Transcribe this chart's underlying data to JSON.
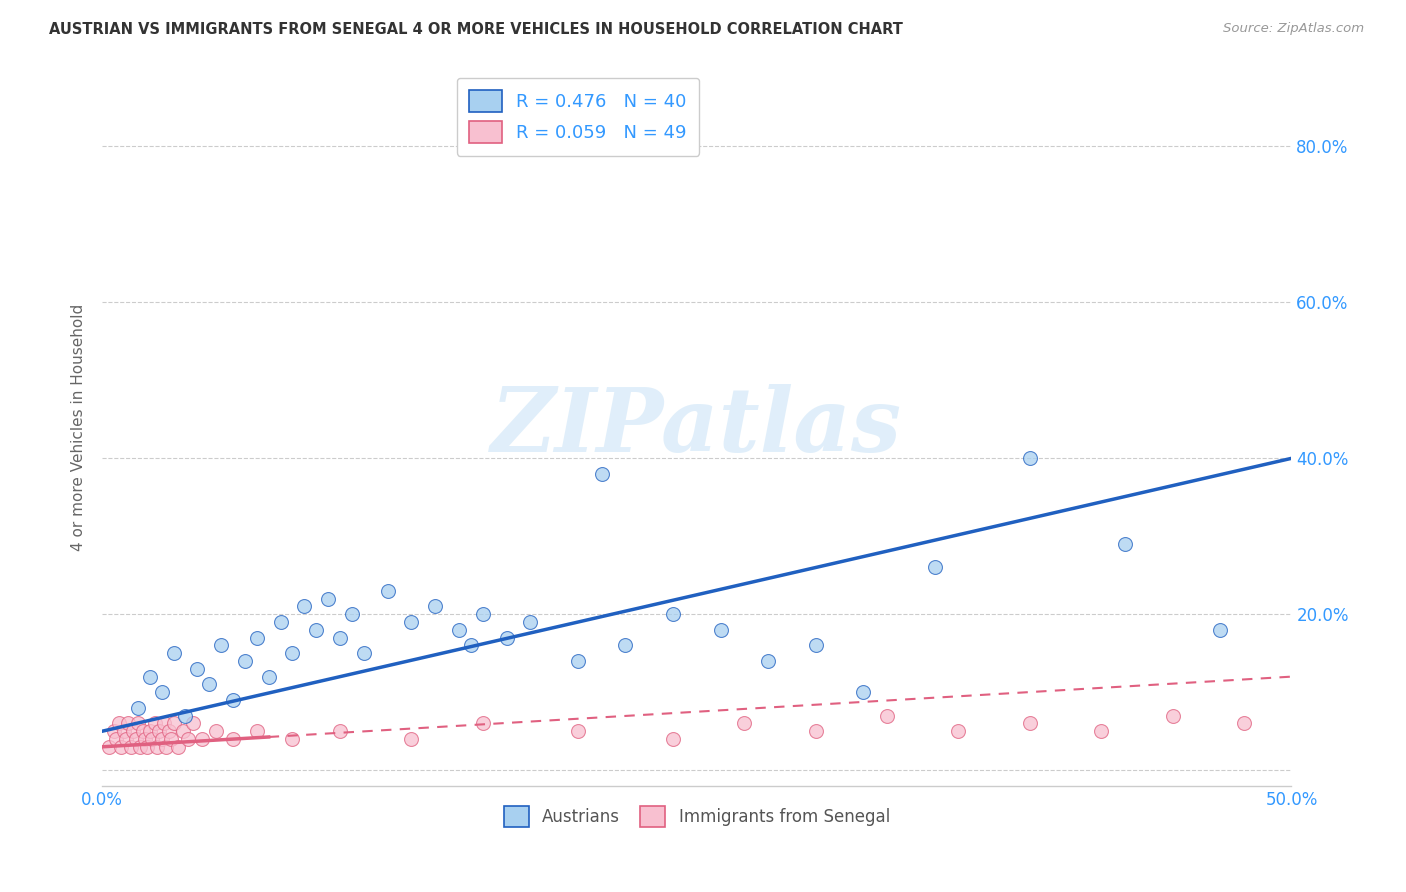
{
  "title": "AUSTRIAN VS IMMIGRANTS FROM SENEGAL 4 OR MORE VEHICLES IN HOUSEHOLD CORRELATION CHART",
  "source": "Source: ZipAtlas.com",
  "ylabel": "4 or more Vehicles in Household",
  "xlim": [
    0.0,
    0.5
  ],
  "ylim": [
    -0.02,
    0.9
  ],
  "watermark_text": "ZIPatlas",
  "legend_label1": "R = 0.476   N = 40",
  "legend_label2": "R = 0.059   N = 49",
  "austrians_color": "#a8d0f0",
  "senegal_color": "#f8c0d0",
  "line1_color": "#2060c0",
  "line2_color": "#e06080",
  "austrians_x": [
    0.015,
    0.02,
    0.025,
    0.03,
    0.035,
    0.04,
    0.045,
    0.05,
    0.055,
    0.06,
    0.065,
    0.07,
    0.075,
    0.08,
    0.085,
    0.09,
    0.095,
    0.1,
    0.105,
    0.11,
    0.12,
    0.13,
    0.14,
    0.15,
    0.155,
    0.16,
    0.17,
    0.18,
    0.2,
    0.21,
    0.22,
    0.24,
    0.26,
    0.28,
    0.3,
    0.32,
    0.35,
    0.39,
    0.43,
    0.47
  ],
  "austrians_y": [
    0.08,
    0.12,
    0.1,
    0.15,
    0.07,
    0.13,
    0.11,
    0.16,
    0.09,
    0.14,
    0.17,
    0.12,
    0.19,
    0.15,
    0.21,
    0.18,
    0.22,
    0.17,
    0.2,
    0.15,
    0.23,
    0.19,
    0.21,
    0.18,
    0.16,
    0.2,
    0.17,
    0.19,
    0.14,
    0.38,
    0.16,
    0.2,
    0.18,
    0.14,
    0.16,
    0.1,
    0.26,
    0.4,
    0.29,
    0.18
  ],
  "senegal_x": [
    0.003,
    0.005,
    0.006,
    0.007,
    0.008,
    0.009,
    0.01,
    0.011,
    0.012,
    0.013,
    0.014,
    0.015,
    0.016,
    0.017,
    0.018,
    0.019,
    0.02,
    0.021,
    0.022,
    0.023,
    0.024,
    0.025,
    0.026,
    0.027,
    0.028,
    0.029,
    0.03,
    0.032,
    0.034,
    0.036,
    0.038,
    0.042,
    0.048,
    0.055,
    0.065,
    0.08,
    0.1,
    0.13,
    0.16,
    0.2,
    0.24,
    0.27,
    0.3,
    0.33,
    0.36,
    0.39,
    0.42,
    0.45,
    0.48
  ],
  "senegal_y": [
    0.03,
    0.05,
    0.04,
    0.06,
    0.03,
    0.05,
    0.04,
    0.06,
    0.03,
    0.05,
    0.04,
    0.06,
    0.03,
    0.05,
    0.04,
    0.03,
    0.05,
    0.04,
    0.06,
    0.03,
    0.05,
    0.04,
    0.06,
    0.03,
    0.05,
    0.04,
    0.06,
    0.03,
    0.05,
    0.04,
    0.06,
    0.04,
    0.05,
    0.04,
    0.05,
    0.04,
    0.05,
    0.04,
    0.06,
    0.05,
    0.04,
    0.06,
    0.05,
    0.07,
    0.05,
    0.06,
    0.05,
    0.07,
    0.06
  ],
  "line1_x_start": 0.0,
  "line1_y_start": 0.05,
  "line1_x_end": 0.5,
  "line1_y_end": 0.4,
  "line2_x_start": 0.0,
  "line2_y_start": 0.03,
  "line2_x_end": 0.5,
  "line2_y_end": 0.12,
  "line2_solid_x_end": 0.07
}
